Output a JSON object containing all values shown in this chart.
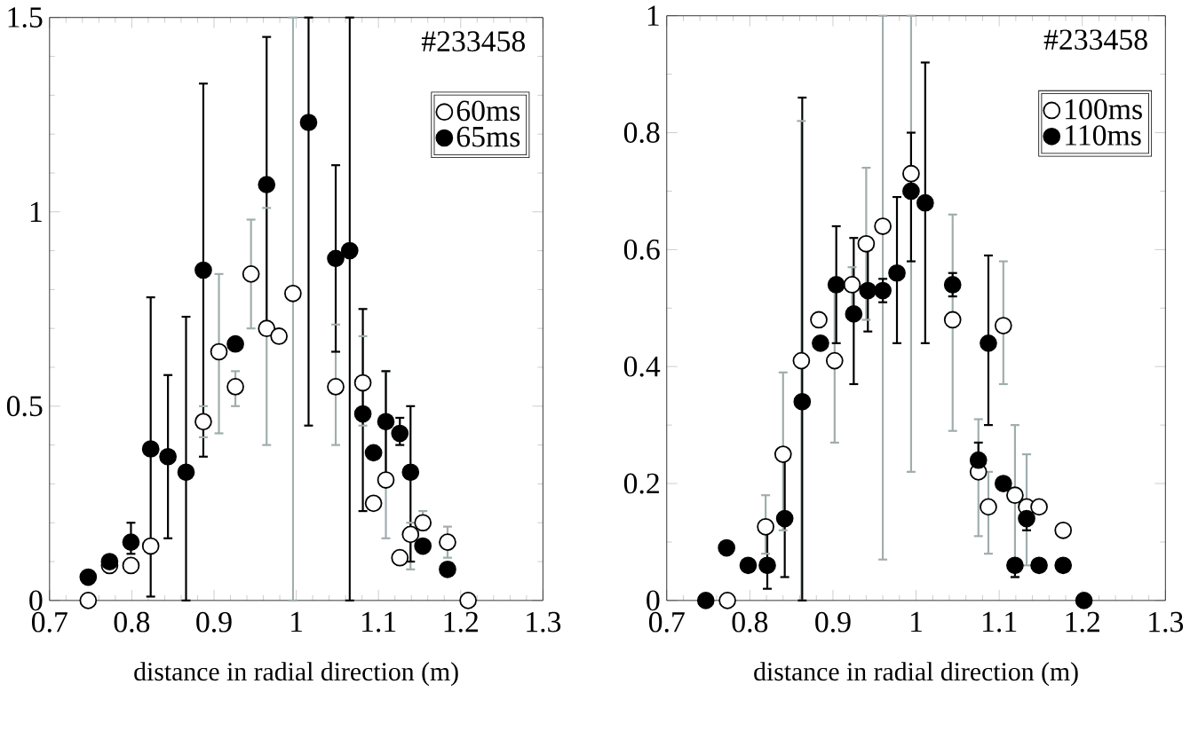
{
  "chart_data": [
    {
      "type": "scatter",
      "xlabel": "distance in radial direction (m)",
      "annotations": [
        "#233458"
      ],
      "xlim": [
        0.7,
        1.3
      ],
      "ylim": [
        0,
        1.5
      ],
      "xticks": [
        0.7,
        0.8,
        0.9,
        1,
        1.1,
        1.2,
        1.3
      ],
      "yticks": [
        0,
        0.5,
        1,
        1.5
      ],
      "legend": "top right",
      "grid": false,
      "series": [
        {
          "name": "60ms",
          "color": "#ffffff",
          "marker": "open circle",
          "x": [
            0.747,
            0.773,
            0.799,
            0.823,
            0.887,
            0.906,
            0.926,
            0.945,
            0.964,
            0.979,
            0.996,
            1.048,
            1.081,
            1.094,
            1.109,
            1.126,
            1.139,
            1.154,
            1.184,
            1.209
          ],
          "values": [
            0,
            0.09,
            0.09,
            0.14,
            0.46,
            0.64,
            0.55,
            0.84,
            0.7,
            0.68,
            0.79,
            0.55,
            0.56,
            0.25,
            0.31,
            0.11,
            0.17,
            0.2,
            0.15,
            0
          ],
          "errors": [
            null,
            null,
            null,
            null,
            [
              0.42,
              0.5
            ],
            [
              0.43,
              0.84
            ],
            [
              0.5,
              0.59
            ],
            [
              0.7,
              0.98
            ],
            [
              0.4,
              1.01
            ],
            null,
            [
              0,
              1.5
            ],
            [
              0.4,
              0.71
            ],
            [
              0.45,
              0.68
            ],
            null,
            [
              0.16,
              0.59
            ],
            null,
            [
              0.08,
              0.2
            ],
            [
              0.18,
              0.23
            ],
            [
              0.11,
              0.19
            ],
            null
          ]
        },
        {
          "name": "65ms",
          "color": "#000000",
          "marker": "circle",
          "x": [
            0.747,
            0.773,
            0.799,
            0.823,
            0.844,
            0.866,
            0.887,
            0.926,
            0.964,
            1.015,
            1.048,
            1.065,
            1.081,
            1.094,
            1.109,
            1.126,
            1.139,
            1.154,
            1.184
          ],
          "values": [
            0.06,
            0.1,
            0.15,
            0.39,
            0.37,
            0.33,
            0.85,
            0.66,
            1.07,
            1.23,
            0.88,
            0.9,
            0.48,
            0.38,
            0.46,
            0.43,
            0.33,
            0.14,
            0.08
          ],
          "errors": [
            null,
            null,
            [
              0.12,
              0.2
            ],
            [
              0.01,
              0.78
            ],
            [
              0.16,
              0.58
            ],
            [
              0,
              0.73
            ],
            [
              0.37,
              1.33
            ],
            null,
            [
              0.7,
              1.45
            ],
            [
              0.45,
              1.5
            ],
            [
              0.64,
              1.12
            ],
            [
              0,
              1.5
            ],
            [
              0.23,
              0.75
            ],
            null,
            [
              0.32,
              0.59
            ],
            [
              0.4,
              0.47
            ],
            [
              0.1,
              0.5
            ],
            null,
            null
          ]
        }
      ]
    },
    {
      "type": "scatter",
      "xlabel": "distance in radial direction (m)",
      "annotations": [
        "#233458"
      ],
      "xlim": [
        0.7,
        1.3
      ],
      "ylim": [
        0,
        1
      ],
      "xticks": [
        0.7,
        0.8,
        0.9,
        1,
        1.1,
        1.2,
        1.3
      ],
      "yticks": [
        0,
        0.2,
        0.4,
        0.6,
        0.8,
        1
      ],
      "legend": "top right",
      "grid": false,
      "series": [
        {
          "name": "100ms",
          "color": "#ffffff",
          "marker": "open circle",
          "x": [
            0.773,
            0.819,
            0.84,
            0.862,
            0.883,
            0.902,
            0.923,
            0.94,
            0.96,
            0.994,
            1.044,
            1.075,
            1.087,
            1.105,
            1.119,
            1.133,
            1.148,
            1.177
          ],
          "values": [
            0,
            0.126,
            0.25,
            0.41,
            0.48,
            0.41,
            0.54,
            0.61,
            0.64,
            0.73,
            0.48,
            0.22,
            0.16,
            0.47,
            0.18,
            0.16,
            0.16,
            0.12
          ],
          "errors": [
            null,
            [
              0.08,
              0.18
            ],
            [
              0.12,
              0.39
            ],
            [
              0,
              0.82
            ],
            null,
            [
              0.27,
              0.55
            ],
            [
              0.5,
              0.57
            ],
            [
              0.48,
              0.74
            ],
            [
              0.07,
              1
            ],
            [
              0.22,
              1
            ],
            [
              0.29,
              0.66
            ],
            [
              0.11,
              0.31
            ],
            [
              0.08,
              0.22
            ],
            [
              0.37,
              0.58
            ],
            [
              0.04,
              0.3
            ],
            [
              0.06,
              0.25
            ],
            null,
            null
          ]
        },
        {
          "name": "110ms",
          "color": "#000000",
          "marker": "circle",
          "x": [
            0.747,
            0.772,
            0.798,
            0.821,
            0.842,
            0.863,
            0.885,
            0.904,
            0.925,
            0.942,
            0.96,
            0.977,
            0.994,
            1.011,
            1.044,
            1.075,
            1.087,
            1.105,
            1.119,
            1.133,
            1.148,
            1.177,
            1.202
          ],
          "values": [
            0,
            0.09,
            0.06,
            0.06,
            0.14,
            0.34,
            0.44,
            0.54,
            0.49,
            0.53,
            0.53,
            0.56,
            0.7,
            0.68,
            0.54,
            0.24,
            0.44,
            0.2,
            0.06,
            0.14,
            0.06,
            0.06,
            0
          ],
          "errors": [
            null,
            null,
            null,
            [
              0.02,
              0.12
            ],
            [
              0.04,
              0.25
            ],
            [
              0,
              0.86
            ],
            null,
            [
              0.44,
              0.64
            ],
            [
              0.37,
              0.62
            ],
            [
              0.46,
              0.6
            ],
            [
              0.51,
              0.55
            ],
            [
              0.44,
              0.69
            ],
            [
              0.58,
              0.8
            ],
            [
              0.44,
              0.92
            ],
            [
              0.52,
              0.56
            ],
            [
              0.22,
              0.27
            ],
            [
              0.3,
              0.59
            ],
            null,
            [
              0.04,
              0.07
            ],
            [
              0.12,
              0.16
            ],
            null,
            null,
            null
          ]
        }
      ]
    }
  ]
}
